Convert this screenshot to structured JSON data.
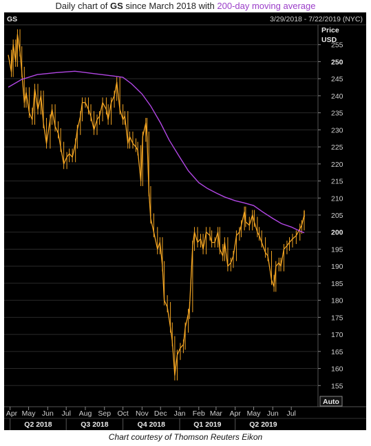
{
  "title": {
    "prefix": "Daily chart of ",
    "ticker": "GS",
    "middle": " since March 2018 with ",
    "ma_text": "200-day moving average"
  },
  "header": {
    "symbol": "GS",
    "date_range": "3/29/2018 - 7/22/2019 (NYC)",
    "price_label": "Price",
    "currency_label": "USD",
    "auto_button": "Auto"
  },
  "caption": "Chart courtesy of Thomson Reuters Eikon",
  "colors": {
    "background": "#000000",
    "price": "#f5a623",
    "moving_average": "#b347e6",
    "grid": "#2a2a2a",
    "axis_text": "#d0d0d0",
    "title_ma": "#9b3ec9"
  },
  "chart_data": {
    "type": "line",
    "ylim": [
      150,
      260
    ],
    "yticks": [
      155,
      160,
      165,
      170,
      175,
      180,
      185,
      190,
      195,
      200,
      205,
      210,
      215,
      220,
      225,
      230,
      235,
      240,
      245,
      250,
      255
    ],
    "months": [
      "Apr",
      "May",
      "Jun",
      "Jul",
      "Aug",
      "Sep",
      "Oct",
      "Nov",
      "Dec",
      "Jan",
      "Feb",
      "Mar",
      "Apr",
      "May",
      "Jun",
      "Jul"
    ],
    "quarters": [
      "Q2 2018",
      "Q3 2018",
      "Q4 2018",
      "Q1 2019",
      "Q2 2019"
    ],
    "grid": true,
    "price_points": [
      [
        "2018-03-29",
        252
      ],
      [
        "2018-04-03",
        247
      ],
      [
        "2018-04-06",
        255
      ],
      [
        "2018-04-10",
        250
      ],
      [
        "2018-04-13",
        258
      ],
      [
        "2018-04-17",
        253
      ],
      [
        "2018-04-20",
        247
      ],
      [
        "2018-04-24",
        238
      ],
      [
        "2018-04-27",
        241
      ],
      [
        "2018-05-02",
        235
      ],
      [
        "2018-05-07",
        233
      ],
      [
        "2018-05-11",
        242
      ],
      [
        "2018-05-16",
        236
      ],
      [
        "2018-05-21",
        240
      ],
      [
        "2018-05-25",
        232
      ],
      [
        "2018-05-30",
        226
      ],
      [
        "2018-06-05",
        233
      ],
      [
        "2018-06-08",
        236
      ],
      [
        "2018-06-13",
        231
      ],
      [
        "2018-06-18",
        229
      ],
      [
        "2018-06-22",
        225
      ],
      [
        "2018-06-27",
        220
      ],
      [
        "2018-07-02",
        222
      ],
      [
        "2018-07-06",
        223
      ],
      [
        "2018-07-11",
        222
      ],
      [
        "2018-07-16",
        226
      ],
      [
        "2018-07-19",
        230
      ],
      [
        "2018-07-24",
        234
      ],
      [
        "2018-07-27",
        238
      ],
      [
        "2018-08-01",
        238
      ],
      [
        "2018-08-06",
        236
      ],
      [
        "2018-08-10",
        234
      ],
      [
        "2018-08-15",
        230
      ],
      [
        "2018-08-20",
        233
      ],
      [
        "2018-08-24",
        234
      ],
      [
        "2018-08-29",
        238
      ],
      [
        "2018-09-04",
        236
      ],
      [
        "2018-09-07",
        233
      ],
      [
        "2018-09-12",
        238
      ],
      [
        "2018-09-17",
        240
      ],
      [
        "2018-09-21",
        244
      ],
      [
        "2018-09-26",
        236
      ],
      [
        "2018-10-01",
        233
      ],
      [
        "2018-10-04",
        234
      ],
      [
        "2018-10-09",
        226
      ],
      [
        "2018-10-12",
        228
      ],
      [
        "2018-10-17",
        226
      ],
      [
        "2018-10-22",
        225
      ],
      [
        "2018-10-25",
        224
      ],
      [
        "2018-10-30",
        215
      ],
      [
        "2018-11-02",
        228
      ],
      [
        "2018-11-07",
        232
      ],
      [
        "2018-11-09",
        228
      ],
      [
        "2018-11-12",
        212
      ],
      [
        "2018-11-15",
        204
      ],
      [
        "2018-11-20",
        200
      ],
      [
        "2018-11-26",
        195
      ],
      [
        "2018-11-30",
        197
      ],
      [
        "2018-12-04",
        190
      ],
      [
        "2018-12-07",
        180
      ],
      [
        "2018-12-12",
        178
      ],
      [
        "2018-12-17",
        172
      ],
      [
        "2018-12-20",
        168
      ],
      [
        "2018-12-24",
        158
      ],
      [
        "2018-12-28",
        164
      ],
      [
        "2019-01-02",
        166
      ],
      [
        "2019-01-07",
        167
      ],
      [
        "2019-01-10",
        172
      ],
      [
        "2019-01-15",
        176
      ],
      [
        "2019-01-17",
        178
      ],
      [
        "2019-01-22",
        196
      ],
      [
        "2019-01-25",
        200
      ],
      [
        "2019-01-30",
        197
      ],
      [
        "2019-02-04",
        198
      ],
      [
        "2019-02-08",
        195
      ],
      [
        "2019-02-13",
        200
      ],
      [
        "2019-02-19",
        199
      ],
      [
        "2019-02-22",
        197
      ],
      [
        "2019-02-27",
        197
      ],
      [
        "2019-03-04",
        200
      ],
      [
        "2019-03-07",
        195
      ],
      [
        "2019-03-12",
        193
      ],
      [
        "2019-03-15",
        197
      ],
      [
        "2019-03-20",
        190
      ],
      [
        "2019-03-25",
        191
      ],
      [
        "2019-03-29",
        193
      ],
      [
        "2019-04-03",
        199
      ],
      [
        "2019-04-08",
        200
      ],
      [
        "2019-04-11",
        202
      ],
      [
        "2019-04-16",
        206
      ],
      [
        "2019-04-18",
        203
      ],
      [
        "2019-04-24",
        202
      ],
      [
        "2019-04-29",
        205
      ],
      [
        "2019-05-02",
        203
      ],
      [
        "2019-05-07",
        200
      ],
      [
        "2019-05-10",
        199
      ],
      [
        "2019-05-14",
        197
      ],
      [
        "2019-05-20",
        194
      ],
      [
        "2019-05-24",
        193
      ],
      [
        "2019-05-30",
        186
      ],
      [
        "2019-06-03",
        184
      ],
      [
        "2019-06-06",
        190
      ],
      [
        "2019-06-11",
        191
      ],
      [
        "2019-06-14",
        190
      ],
      [
        "2019-06-19",
        195
      ],
      [
        "2019-06-24",
        196
      ],
      [
        "2019-06-28",
        197
      ],
      [
        "2019-07-03",
        198
      ],
      [
        "2019-07-09",
        199
      ],
      [
        "2019-07-15",
        201
      ],
      [
        "2019-07-18",
        202
      ],
      [
        "2019-07-22",
        205
      ]
    ],
    "ma_points": [
      [
        "2018-03-29",
        242.5
      ],
      [
        "2018-04-20",
        244.8
      ],
      [
        "2018-05-15",
        246.2
      ],
      [
        "2018-06-15",
        246.8
      ],
      [
        "2018-07-15",
        247.2
      ],
      [
        "2018-08-15",
        246.5
      ],
      [
        "2018-09-15",
        245.8
      ],
      [
        "2018-10-01",
        245.4
      ],
      [
        "2018-10-15",
        243.5
      ],
      [
        "2018-11-01",
        240.5
      ],
      [
        "2018-11-15",
        237.0
      ],
      [
        "2018-12-01",
        232.0
      ],
      [
        "2018-12-15",
        227.0
      ],
      [
        "2019-01-01",
        222.0
      ],
      [
        "2019-01-15",
        218.0
      ],
      [
        "2019-02-01",
        214.5
      ],
      [
        "2019-02-15",
        212.8
      ],
      [
        "2019-03-01",
        211.5
      ],
      [
        "2019-03-15",
        210.3
      ],
      [
        "2019-04-01",
        209.2
      ],
      [
        "2019-04-15",
        208.6
      ],
      [
        "2019-05-01",
        207.8
      ],
      [
        "2019-05-15",
        206.0
      ],
      [
        "2019-06-01",
        204.0
      ],
      [
        "2019-06-15",
        202.5
      ],
      [
        "2019-07-01",
        201.5
      ],
      [
        "2019-07-15",
        200.3
      ],
      [
        "2019-07-22",
        199.8
      ]
    ]
  }
}
